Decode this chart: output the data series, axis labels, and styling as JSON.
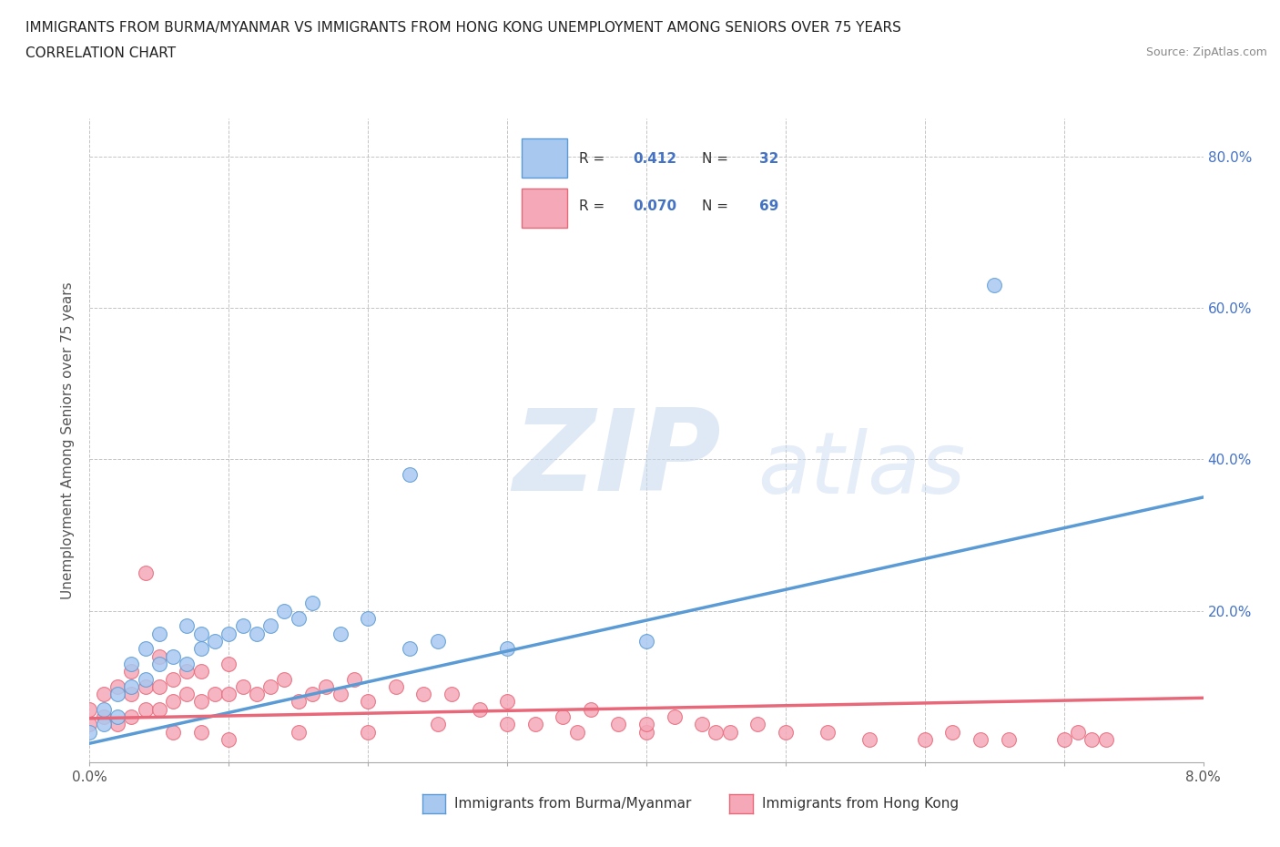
{
  "title_line1": "IMMIGRANTS FROM BURMA/MYANMAR VS IMMIGRANTS FROM HONG KONG UNEMPLOYMENT AMONG SENIORS OVER 75 YEARS",
  "title_line2": "CORRELATION CHART",
  "source_text": "Source: ZipAtlas.com",
  "ylabel": "Unemployment Among Seniors over 75 years",
  "xlim": [
    0.0,
    0.08
  ],
  "ylim": [
    0.0,
    0.85
  ],
  "color_burma": "#a8c8f0",
  "color_hk": "#f4a8b8",
  "color_burma_line": "#5b9bd5",
  "color_hk_line": "#e8687a",
  "color_text_blue": "#4472c4",
  "burma_line_x0": 0.0,
  "burma_line_y0": 0.025,
  "burma_line_x1": 0.08,
  "burma_line_y1": 0.35,
  "hk_line_x0": 0.0,
  "hk_line_y0": 0.058,
  "hk_line_x1": 0.08,
  "hk_line_y1": 0.085,
  "burma_x": [
    0.0,
    0.001,
    0.001,
    0.002,
    0.002,
    0.003,
    0.003,
    0.004,
    0.004,
    0.005,
    0.005,
    0.006,
    0.007,
    0.007,
    0.008,
    0.008,
    0.009,
    0.01,
    0.011,
    0.012,
    0.013,
    0.014,
    0.015,
    0.016,
    0.018,
    0.02,
    0.023,
    0.025,
    0.03,
    0.04,
    0.023,
    0.065
  ],
  "burma_y": [
    0.04,
    0.05,
    0.07,
    0.06,
    0.09,
    0.1,
    0.13,
    0.11,
    0.15,
    0.13,
    0.17,
    0.14,
    0.13,
    0.18,
    0.15,
    0.17,
    0.16,
    0.17,
    0.18,
    0.17,
    0.18,
    0.2,
    0.19,
    0.21,
    0.17,
    0.19,
    0.15,
    0.16,
    0.15,
    0.16,
    0.38,
    0.63
  ],
  "hk_x": [
    0.0,
    0.0,
    0.001,
    0.001,
    0.002,
    0.002,
    0.003,
    0.003,
    0.003,
    0.004,
    0.004,
    0.005,
    0.005,
    0.005,
    0.006,
    0.006,
    0.007,
    0.007,
    0.008,
    0.008,
    0.009,
    0.01,
    0.01,
    0.011,
    0.012,
    0.013,
    0.014,
    0.015,
    0.016,
    0.017,
    0.018,
    0.019,
    0.02,
    0.022,
    0.024,
    0.026,
    0.028,
    0.03,
    0.032,
    0.034,
    0.036,
    0.038,
    0.04,
    0.042,
    0.044,
    0.046,
    0.048,
    0.05,
    0.053,
    0.056,
    0.06,
    0.062,
    0.064,
    0.066,
    0.07,
    0.071,
    0.072,
    0.073,
    0.04,
    0.045,
    0.035,
    0.03,
    0.025,
    0.02,
    0.015,
    0.01,
    0.008,
    0.006,
    0.004
  ],
  "hk_y": [
    0.05,
    0.07,
    0.06,
    0.09,
    0.05,
    0.1,
    0.06,
    0.09,
    0.12,
    0.07,
    0.1,
    0.07,
    0.1,
    0.14,
    0.08,
    0.11,
    0.09,
    0.12,
    0.08,
    0.12,
    0.09,
    0.09,
    0.13,
    0.1,
    0.09,
    0.1,
    0.11,
    0.08,
    0.09,
    0.1,
    0.09,
    0.11,
    0.08,
    0.1,
    0.09,
    0.09,
    0.07,
    0.08,
    0.05,
    0.06,
    0.07,
    0.05,
    0.04,
    0.06,
    0.05,
    0.04,
    0.05,
    0.04,
    0.04,
    0.03,
    0.03,
    0.04,
    0.03,
    0.03,
    0.03,
    0.04,
    0.03,
    0.03,
    0.05,
    0.04,
    0.04,
    0.05,
    0.05,
    0.04,
    0.04,
    0.03,
    0.04,
    0.04,
    0.25
  ]
}
